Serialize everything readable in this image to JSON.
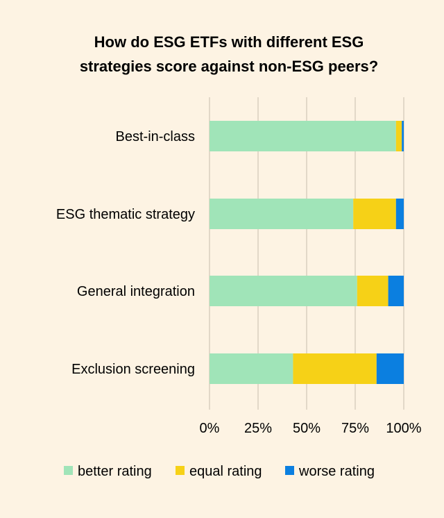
{
  "chart_data": {
    "type": "bar",
    "orientation": "horizontal",
    "stacked": true,
    "title_lines": [
      "How do ESG ETFs with different ESG",
      "strategies score against non-ESG peers?"
    ],
    "categories": [
      "Best-in-class",
      "ESG thematic strategy",
      "General integration",
      "Exclusion screening"
    ],
    "series": [
      {
        "name": "better rating",
        "color": "#a0e4b8",
        "values": [
          96,
          74,
          76,
          43
        ]
      },
      {
        "name": "equal rating",
        "color": "#f6d117",
        "values": [
          3,
          22,
          16,
          43
        ]
      },
      {
        "name": "worse rating",
        "color": "#0b7fe0",
        "values": [
          1,
          4,
          8,
          14
        ]
      }
    ],
    "xlim": [
      0,
      100
    ],
    "x_ticks": [
      "0%",
      "25%",
      "50%",
      "75%",
      "100%"
    ],
    "grid": true,
    "legend_position": "bottom"
  }
}
